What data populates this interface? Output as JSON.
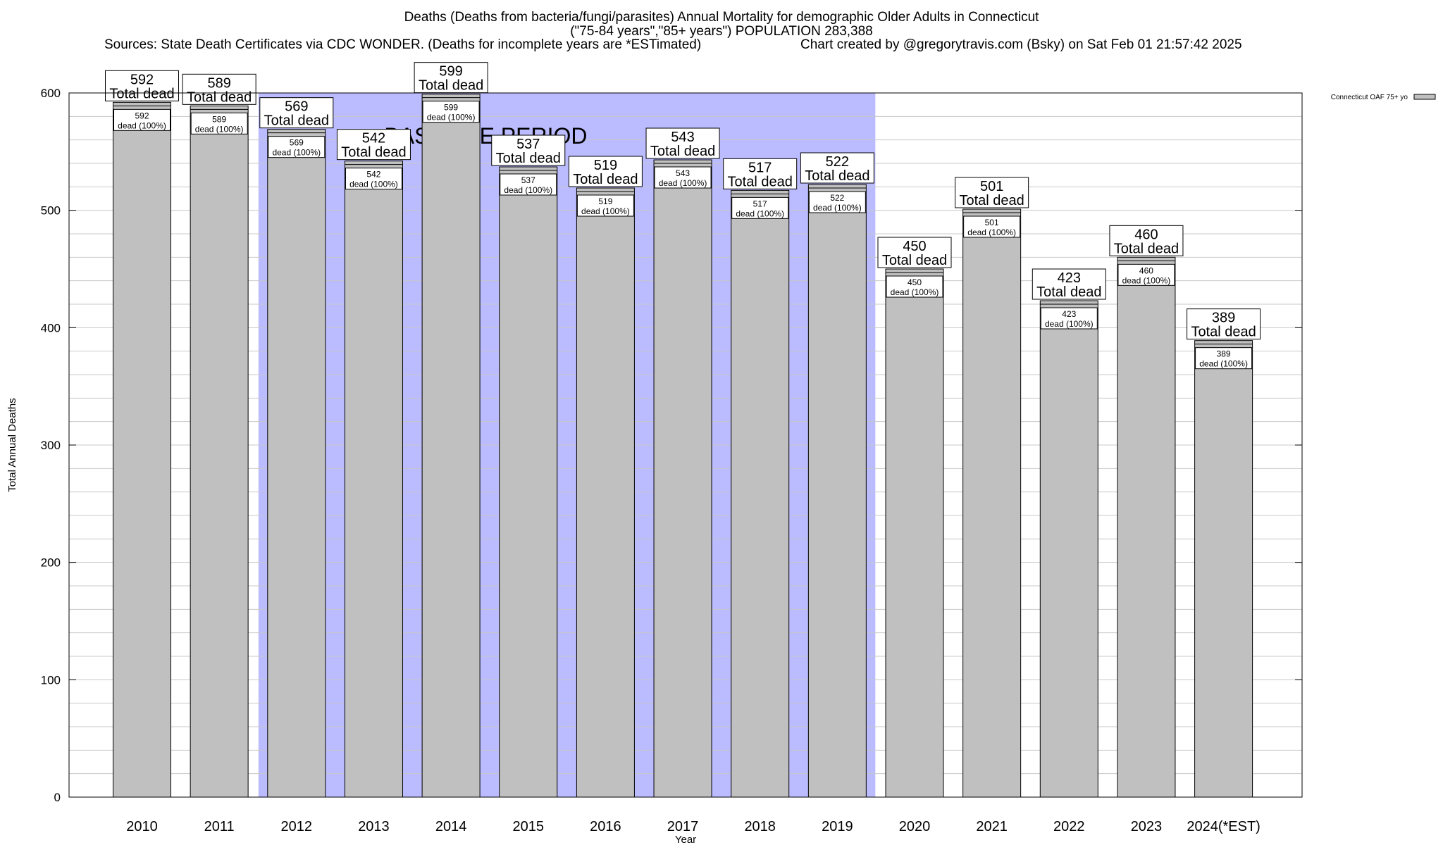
{
  "header": {
    "title_line1": "Deaths (Deaths from bacteria/fungi/parasites) Annual Mortality for demographic Older Adults in Connecticut",
    "title_line2": "(\"75-84 years\",\"85+ years\") POPULATION 283,388",
    "sources": "Sources: State Death Certificates via CDC WONDER. (Deaths for incomplete years are *ESTimated)",
    "credit": "Chart created by @gregorytravis.com (Bsky) on Sat Feb 01 21:57:42 2025"
  },
  "chart_data": {
    "type": "bar",
    "xlabel": "Year",
    "ylabel": "Total Annual Deaths",
    "ylim": [
      0,
      600
    ],
    "yticks": [
      0,
      100,
      200,
      300,
      400,
      500,
      600
    ],
    "minor_grid_step": 20,
    "grid": true,
    "categories": [
      "2010",
      "2011",
      "2012",
      "2013",
      "2014",
      "2015",
      "2016",
      "2017",
      "2018",
      "2019",
      "2020",
      "2021",
      "2022",
      "2023",
      "2024(*EST)"
    ],
    "series": [
      {
        "name": "Connecticut OAF 75+ yo",
        "values": [
          592,
          589,
          569,
          542,
          599,
          537,
          519,
          543,
          517,
          522,
          450,
          501,
          423,
          460,
          389
        ]
      }
    ],
    "bar_label_top": "Total dead",
    "bar_label_inner": "dead (100%)",
    "baseline_period": {
      "label": "BASELINE PERIOD",
      "start": "2012",
      "end": "2019"
    },
    "legend_position": "top-right",
    "colors": {
      "bar": "#c0c0c0",
      "baseline": "#bbbbff",
      "grid": "#c8c8c8"
    }
  }
}
